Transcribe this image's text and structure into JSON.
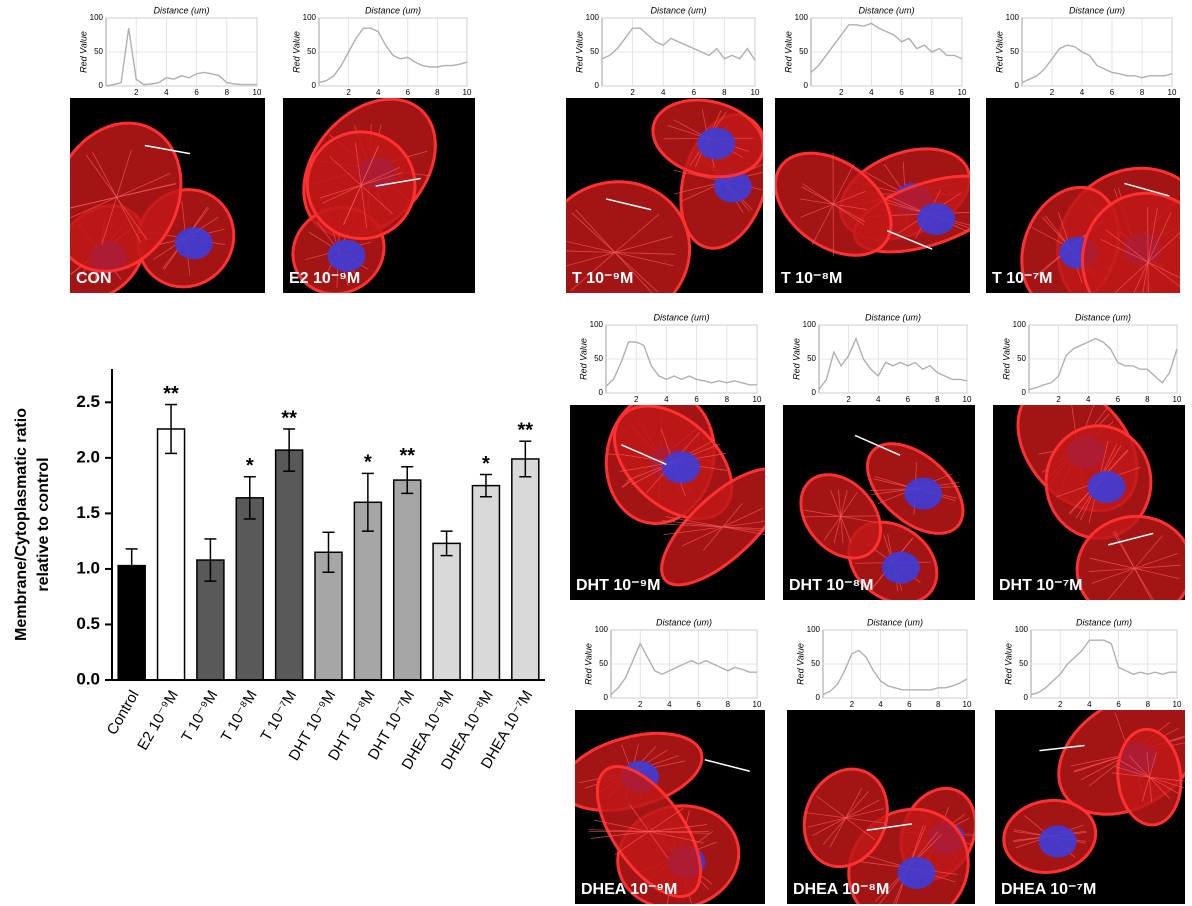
{
  "panels": [
    {
      "label": "CON"
    },
    {
      "label": "E2 10⁻⁹M"
    },
    {
      "label": "T 10⁻⁹M"
    },
    {
      "label": "T 10⁻⁸M"
    },
    {
      "label": "T 10⁻⁷M"
    },
    {
      "label": "DHT 10⁻⁹M"
    },
    {
      "label": "DHT 10⁻⁸M"
    },
    {
      "label": "DHT 10⁻⁷M"
    },
    {
      "label": "DHEA 10⁻⁹M"
    },
    {
      "label": "DHEA 10⁻⁸M"
    },
    {
      "label": "DHEA 10⁻⁷M"
    }
  ],
  "chart_data": [
    {
      "type": "bar",
      "ylabel": [
        "Membrane/Cytoplasmatic ratio",
        "relative to control"
      ],
      "categories": [
        "Control",
        "E2 10⁻⁹M",
        "T 10⁻⁹M",
        "T 10⁻⁸M",
        "T 10⁻⁷M",
        "DHT 10⁻⁹M",
        "DHT 10⁻⁸M",
        "DHT 10⁻⁷M",
        "DHEA 10⁻⁹M",
        "DHEA 10⁻⁸M",
        "DHEA 10⁻⁷M"
      ],
      "values": [
        1.03,
        2.26,
        1.08,
        1.64,
        2.07,
        1.15,
        1.6,
        1.8,
        1.23,
        1.75,
        1.99
      ],
      "errors": [
        0.15,
        0.22,
        0.19,
        0.19,
        0.19,
        0.18,
        0.26,
        0.12,
        0.11,
        0.1,
        0.16
      ],
      "annotations": [
        null,
        "**",
        null,
        "*",
        "**",
        null,
        "*",
        "**",
        null,
        "*",
        "**"
      ],
      "colors": [
        "#000000",
        "#ffffff",
        "#595959",
        "#595959",
        "#595959",
        "#a6a6a6",
        "#a6a6a6",
        "#a6a6a6",
        "#d9d9d9",
        "#d9d9d9",
        "#d9d9d9"
      ],
      "ylim": [
        0,
        2.8
      ],
      "yticks": [
        {
          "value": 0,
          "label": "0.0"
        },
        {
          "value": 0.5,
          "label": "0.5"
        },
        {
          "value": 1,
          "label": "1.0"
        },
        {
          "value": 1.5,
          "label": "1.5"
        },
        {
          "value": 2,
          "label": "2.0"
        },
        {
          "value": 2.5,
          "label": "2.5"
        }
      ]
    },
    {
      "type": "line",
      "title": "Distance (um)",
      "ylabel": "Red Value",
      "color": "#b0b0b0",
      "grid": true,
      "xlim": [
        0,
        10
      ],
      "ylim": [
        0,
        100
      ],
      "xticks": [
        2,
        4,
        6,
        8,
        10
      ],
      "yticks": [
        0,
        50,
        100
      ],
      "x": [
        0,
        0.5,
        1,
        1.5,
        2,
        2.5,
        3,
        3.5,
        4,
        4.5,
        5,
        5.5,
        6,
        6.5,
        7,
        7.5,
        8,
        8.5,
        9,
        9.5,
        10
      ],
      "values": [
        0,
        2,
        5,
        85,
        10,
        2,
        3,
        5,
        12,
        10,
        15,
        12,
        18,
        20,
        18,
        15,
        5,
        3,
        2,
        2,
        2
      ]
    },
    {
      "type": "line",
      "title": "Distance (um)",
      "ylabel": "Red Value",
      "color": "#b0b0b0",
      "grid": true,
      "xlim": [
        0,
        10
      ],
      "ylim": [
        0,
        100
      ],
      "xticks": [
        2,
        4,
        6,
        8,
        10
      ],
      "yticks": [
        0,
        50,
        100
      ],
      "x": [
        0,
        0.5,
        1,
        1.5,
        2,
        2.5,
        3,
        3.5,
        4,
        4.5,
        5,
        5.5,
        6,
        6.5,
        7,
        7.5,
        8,
        8.5,
        9,
        9.5,
        10
      ],
      "values": [
        5,
        8,
        15,
        30,
        50,
        70,
        85,
        85,
        80,
        60,
        45,
        40,
        42,
        35,
        30,
        28,
        28,
        30,
        30,
        32,
        35
      ]
    },
    {
      "type": "line",
      "title": "Distance (um)",
      "ylabel": "Red Value",
      "color": "#b0b0b0",
      "grid": true,
      "xlim": [
        0,
        10
      ],
      "ylim": [
        0,
        100
      ],
      "xticks": [
        2,
        4,
        6,
        8,
        10
      ],
      "yticks": [
        0,
        50,
        100
      ],
      "x": [
        0,
        0.5,
        1,
        1.5,
        2,
        2.5,
        3,
        3.5,
        4,
        4.5,
        5,
        5.5,
        6,
        6.5,
        7,
        7.5,
        8,
        8.5,
        9,
        9.5,
        10
      ],
      "values": [
        40,
        45,
        55,
        70,
        85,
        85,
        75,
        65,
        60,
        70,
        65,
        60,
        55,
        50,
        45,
        55,
        40,
        45,
        40,
        55,
        38
      ]
    },
    {
      "type": "line",
      "title": "Distance (um)",
      "ylabel": "Red Value",
      "color": "#b0b0b0",
      "grid": true,
      "xlim": [
        0,
        10
      ],
      "ylim": [
        0,
        100
      ],
      "xticks": [
        2,
        4,
        6,
        8,
        10
      ],
      "yticks": [
        0,
        50,
        100
      ],
      "x": [
        0,
        0.5,
        1,
        1.5,
        2,
        2.5,
        3,
        3.5,
        4,
        4.5,
        5,
        5.5,
        6,
        6.5,
        7,
        7.5,
        8,
        8.5,
        9,
        9.5,
        10
      ],
      "values": [
        20,
        30,
        45,
        60,
        75,
        90,
        90,
        88,
        92,
        85,
        80,
        75,
        65,
        70,
        55,
        60,
        50,
        55,
        45,
        45,
        40
      ]
    },
    {
      "type": "line",
      "title": "Distance (um)",
      "ylabel": "Red Value",
      "color": "#b0b0b0",
      "grid": true,
      "xlim": [
        0,
        10
      ],
      "ylim": [
        0,
        100
      ],
      "xticks": [
        2,
        4,
        6,
        8,
        10
      ],
      "yticks": [
        0,
        50,
        100
      ],
      "x": [
        0,
        0.5,
        1,
        1.5,
        2,
        2.5,
        3,
        3.5,
        4,
        4.5,
        5,
        5.5,
        6,
        6.5,
        7,
        7.5,
        8,
        8.5,
        9,
        9.5,
        10
      ],
      "values": [
        5,
        10,
        15,
        25,
        40,
        55,
        60,
        58,
        50,
        45,
        30,
        25,
        20,
        18,
        15,
        15,
        12,
        15,
        15,
        15,
        18
      ]
    },
    {
      "type": "line",
      "title": "Distance (um)",
      "ylabel": "Red Value",
      "color": "#b0b0b0",
      "grid": true,
      "xlim": [
        0,
        10
      ],
      "ylim": [
        0,
        100
      ],
      "xticks": [
        2,
        4,
        6,
        8,
        10
      ],
      "yticks": [
        0,
        50,
        100
      ],
      "x": [
        0,
        0.5,
        1,
        1.5,
        2,
        2.5,
        3,
        3.5,
        4,
        4.5,
        5,
        5.5,
        6,
        6.5,
        7,
        7.5,
        8,
        8.5,
        9,
        9.5,
        10
      ],
      "values": [
        10,
        20,
        45,
        75,
        75,
        70,
        40,
        25,
        20,
        25,
        20,
        25,
        20,
        18,
        15,
        18,
        15,
        18,
        15,
        12,
        12
      ]
    },
    {
      "type": "line",
      "title": "Distance (um)",
      "ylabel": "Red Value",
      "color": "#b0b0b0",
      "grid": true,
      "xlim": [
        0,
        10
      ],
      "ylim": [
        0,
        100
      ],
      "xticks": [
        2,
        4,
        6,
        8,
        10
      ],
      "yticks": [
        0,
        50,
        100
      ],
      "x": [
        0,
        0.5,
        1,
        1.5,
        2,
        2.5,
        3,
        3.5,
        4,
        4.5,
        5,
        5.5,
        6,
        6.5,
        7,
        7.5,
        8,
        8.5,
        9,
        9.5,
        10
      ],
      "values": [
        5,
        20,
        60,
        40,
        55,
        80,
        50,
        35,
        25,
        45,
        40,
        45,
        40,
        45,
        35,
        40,
        30,
        25,
        20,
        20,
        18
      ]
    },
    {
      "type": "line",
      "title": "Distance (um)",
      "ylabel": "Red Value",
      "color": "#b0b0b0",
      "grid": true,
      "xlim": [
        0,
        10
      ],
      "ylim": [
        0,
        100
      ],
      "xticks": [
        2,
        4,
        6,
        8,
        10
      ],
      "yticks": [
        0,
        50,
        100
      ],
      "x": [
        0,
        0.5,
        1,
        1.5,
        2,
        2.5,
        3,
        3.5,
        4,
        4.5,
        5,
        5.5,
        6,
        6.5,
        7,
        7.5,
        8,
        8.5,
        9,
        9.5,
        10
      ],
      "values": [
        5,
        8,
        12,
        15,
        25,
        55,
        65,
        70,
        75,
        80,
        75,
        65,
        45,
        40,
        40,
        35,
        35,
        25,
        15,
        30,
        65
      ]
    },
    {
      "type": "line",
      "title": "Distance (um)",
      "ylabel": "Red Value",
      "color": "#b0b0b0",
      "grid": true,
      "xlim": [
        0,
        10
      ],
      "ylim": [
        0,
        100
      ],
      "xticks": [
        2,
        4,
        6,
        8,
        10
      ],
      "yticks": [
        0,
        50,
        100
      ],
      "x": [
        0,
        0.5,
        1,
        1.5,
        2,
        2.5,
        3,
        3.5,
        4,
        4.5,
        5,
        5.5,
        6,
        6.5,
        7,
        7.5,
        8,
        8.5,
        9,
        9.5,
        10
      ],
      "values": [
        5,
        15,
        30,
        55,
        80,
        60,
        40,
        35,
        40,
        45,
        50,
        55,
        50,
        55,
        50,
        45,
        40,
        45,
        42,
        38,
        38
      ]
    },
    {
      "type": "line",
      "title": "Distance (um)",
      "ylabel": "Red Value",
      "color": "#b0b0b0",
      "grid": true,
      "xlim": [
        0,
        10
      ],
      "ylim": [
        0,
        100
      ],
      "xticks": [
        2,
        4,
        6,
        8,
        10
      ],
      "yticks": [
        0,
        50,
        100
      ],
      "x": [
        0,
        0.5,
        1,
        1.5,
        2,
        2.5,
        3,
        3.5,
        4,
        4.5,
        5,
        5.5,
        6,
        6.5,
        7,
        7.5,
        8,
        8.5,
        9,
        9.5,
        10
      ],
      "values": [
        5,
        10,
        20,
        40,
        65,
        70,
        60,
        40,
        25,
        18,
        15,
        12,
        12,
        12,
        12,
        12,
        15,
        15,
        18,
        22,
        28
      ]
    },
    {
      "type": "line",
      "title": "Distance (um)",
      "ylabel": "Red Value",
      "color": "#b0b0b0",
      "grid": true,
      "xlim": [
        0,
        10
      ],
      "ylim": [
        0,
        100
      ],
      "xticks": [
        2,
        4,
        6,
        8,
        10
      ],
      "yticks": [
        0,
        50,
        100
      ],
      "x": [
        0,
        0.5,
        1,
        1.5,
        2,
        2.5,
        3,
        3.5,
        4,
        4.5,
        5,
        5.5,
        6,
        6.5,
        7,
        7.5,
        8,
        8.5,
        9,
        9.5,
        10
      ],
      "values": [
        5,
        8,
        15,
        25,
        35,
        50,
        60,
        70,
        85,
        85,
        85,
        80,
        45,
        40,
        35,
        38,
        35,
        38,
        35,
        38,
        38
      ]
    }
  ]
}
